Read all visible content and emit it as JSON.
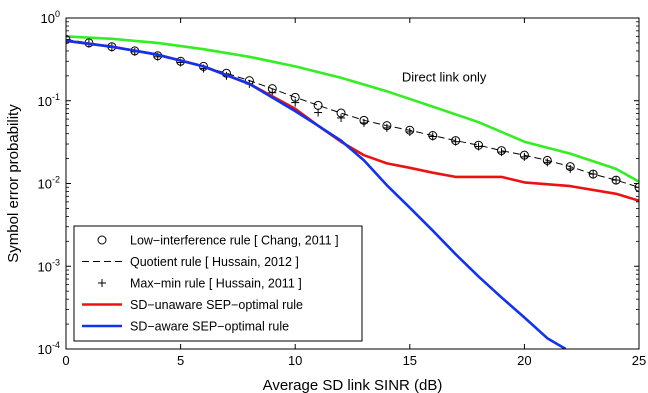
{
  "chart_data": {
    "type": "line",
    "xlabel": "Average SD link SINR (dB)",
    "ylabel": "Symbol error probability",
    "xlim": [
      0,
      25
    ],
    "ylim": [
      0.0001,
      1
    ],
    "yscale": "log",
    "grid": false,
    "legend_placement": "bottom-left",
    "x_ticks": [
      "0",
      "5",
      "10",
      "15",
      "20",
      "25"
    ],
    "y_ticks": [
      {
        "base": "10",
        "exp": "-4"
      },
      {
        "base": "10",
        "exp": "-3"
      },
      {
        "base": "10",
        "exp": "-2"
      },
      {
        "base": "10",
        "exp": "-1"
      },
      {
        "base": "10",
        "exp": "0"
      }
    ],
    "annotations": [
      {
        "text": "Direct link only",
        "x": 16.5,
        "y": 0.19
      }
    ],
    "series": [
      {
        "name": "",
        "color": "#33ee22",
        "style": "line",
        "x": [
          0,
          2,
          4,
          6,
          8,
          10,
          12,
          14,
          16,
          18,
          20,
          22,
          24,
          25
        ],
        "y": [
          0.6,
          0.56,
          0.5,
          0.42,
          0.34,
          0.26,
          0.19,
          0.13,
          0.085,
          0.055,
          0.032,
          0.023,
          0.015,
          0.0105
        ]
      },
      {
        "name": "Low−interference rule [ Chang, 2011 ]",
        "color": "#000000",
        "style": "circle",
        "x": [
          0,
          1,
          2,
          3,
          4,
          5,
          6,
          7,
          8,
          9,
          10,
          11,
          12,
          13,
          14,
          15,
          16,
          17,
          18,
          19,
          20,
          21,
          22,
          23,
          24,
          25
        ],
        "y": [
          0.55,
          0.5,
          0.45,
          0.4,
          0.35,
          0.3,
          0.26,
          0.215,
          0.175,
          0.14,
          0.11,
          0.088,
          0.071,
          0.058,
          0.05,
          0.044,
          0.038,
          0.033,
          0.029,
          0.025,
          0.022,
          0.019,
          0.016,
          0.013,
          0.011,
          0.009
        ]
      },
      {
        "name": "Quotient rule [ Hussain, 2012 ]",
        "color": "#000000",
        "style": "dashed",
        "x": [
          0,
          1,
          2,
          3,
          4,
          5,
          6,
          7,
          8,
          9,
          10,
          11,
          12,
          13,
          14,
          15,
          16,
          17,
          18,
          19,
          20,
          21,
          22,
          23,
          24,
          25
        ],
        "y": [
          0.55,
          0.5,
          0.45,
          0.4,
          0.35,
          0.3,
          0.26,
          0.215,
          0.175,
          0.14,
          0.11,
          0.088,
          0.071,
          0.058,
          0.05,
          0.044,
          0.038,
          0.033,
          0.029,
          0.025,
          0.022,
          0.019,
          0.016,
          0.013,
          0.011,
          0.009
        ]
      },
      {
        "name": "Max−min rule [ Hussain, 2011 ]",
        "color": "#000000",
        "style": "plus",
        "x": [
          0,
          1,
          2,
          3,
          4,
          5,
          6,
          7,
          8,
          9,
          10,
          11,
          12,
          13,
          14,
          15,
          16,
          17,
          18,
          19,
          20,
          21,
          22,
          23,
          24,
          25
        ],
        "y": [
          0.55,
          0.49,
          0.44,
          0.39,
          0.34,
          0.29,
          0.245,
          0.2,
          0.16,
          0.125,
          0.095,
          0.072,
          0.062,
          0.054,
          0.047,
          0.042,
          0.037,
          0.032,
          0.028,
          0.024,
          0.021,
          0.018,
          0.015,
          0.013,
          0.011,
          0.009
        ]
      },
      {
        "name": "SD−unaware SEP−optimal rule",
        "color": "#ee1111",
        "style": "line",
        "x": [
          0,
          2,
          4,
          6,
          8,
          10,
          11,
          12,
          13,
          14,
          15,
          16,
          17,
          18,
          19,
          20,
          22,
          24,
          25
        ],
        "y": [
          0.53,
          0.45,
          0.36,
          0.26,
          0.16,
          0.08,
          0.05,
          0.032,
          0.022,
          0.0175,
          0.0155,
          0.0135,
          0.012,
          0.012,
          0.012,
          0.0103,
          0.0093,
          0.0075,
          0.0062
        ]
      },
      {
        "name": "SD−aware SEP−optimal rule",
        "color": "#1133ee",
        "style": "line",
        "x": [
          0,
          2,
          4,
          6,
          8,
          10,
          11,
          12,
          13,
          14,
          15,
          16,
          17,
          18,
          19,
          20,
          21,
          21.8
        ],
        "y": [
          0.53,
          0.45,
          0.36,
          0.26,
          0.16,
          0.075,
          0.05,
          0.033,
          0.019,
          0.0095,
          0.0051,
          0.0027,
          0.0014,
          0.00075,
          0.00042,
          0.00024,
          0.000135,
          0.0001
        ]
      }
    ]
  }
}
